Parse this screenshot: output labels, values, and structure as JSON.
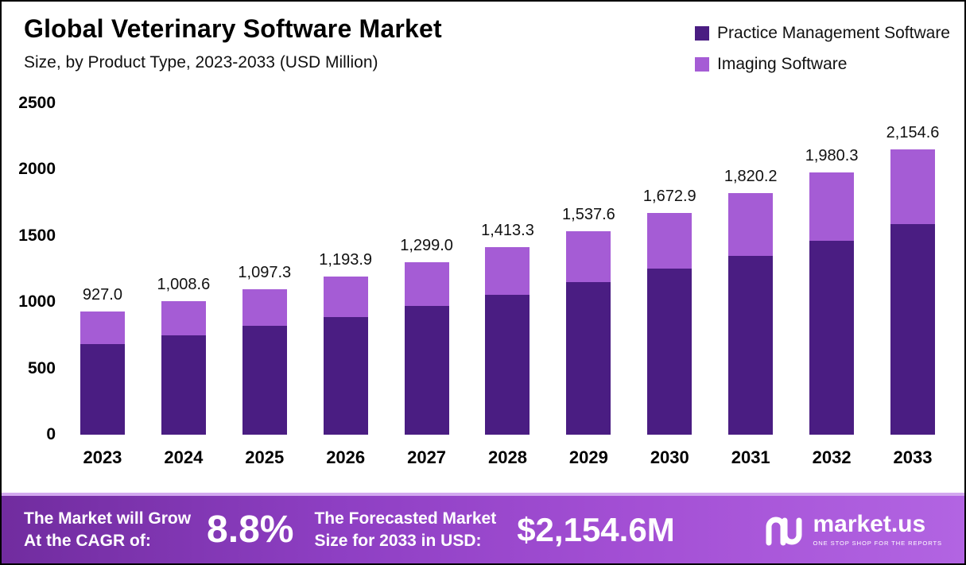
{
  "header": {
    "title": "Global Veterinary Software Market",
    "subtitle": "Size, by Product Type, 2023-2033 (USD Million)"
  },
  "legend": [
    {
      "label": "Practice Management Software",
      "color": "#4a1d82"
    },
    {
      "label": "Imaging Software",
      "color": "#a55cd5"
    }
  ],
  "chart_data": {
    "type": "bar",
    "stacked": true,
    "title": "Global Veterinary Software Market Size, by Product Type, 2023-2033 (USD Million)",
    "categories": [
      "2023",
      "2024",
      "2025",
      "2026",
      "2027",
      "2028",
      "2029",
      "2030",
      "2031",
      "2032",
      "2033"
    ],
    "series": [
      {
        "name": "Practice Management Software",
        "color": "#4a1d82",
        "values": [
          683,
          748,
          820,
          888,
          970,
          1053,
          1150,
          1252,
          1349,
          1463,
          1590
        ]
      },
      {
        "name": "Imaging Software",
        "color": "#a55cd5",
        "values": [
          244.0,
          260.6,
          277.3,
          305.9,
          329.0,
          360.3,
          387.6,
          420.9,
          471.2,
          517.3,
          564.6
        ]
      }
    ],
    "totals": [
      927.0,
      1008.6,
      1097.3,
      1193.9,
      1299.0,
      1413.3,
      1537.6,
      1672.9,
      1820.2,
      1980.3,
      2154.6
    ],
    "total_labels": [
      "927.0",
      "1,008.6",
      "1,097.3",
      "1,193.9",
      "1,299.0",
      "1,413.3",
      "1,537.6",
      "1,672.9",
      "1,820.2",
      "1,980.3",
      "2,154.6"
    ],
    "ylim": [
      0,
      2500
    ],
    "yticks": [
      2500,
      2000,
      1500,
      1000,
      500,
      0
    ],
    "grid": false,
    "legend_position": "top-right"
  },
  "footer": {
    "cagr_line1": "The Market will Grow",
    "cagr_line2": "At the CAGR of:",
    "cagr_value": "8.8%",
    "forecast_line1": "The Forecasted Market",
    "forecast_line2": "Size for 2033 in USD:",
    "forecast_value": "$2,154.6M",
    "brand": {
      "name": "market.us",
      "tagline": "ONE STOP SHOP FOR THE REPORTS"
    }
  }
}
